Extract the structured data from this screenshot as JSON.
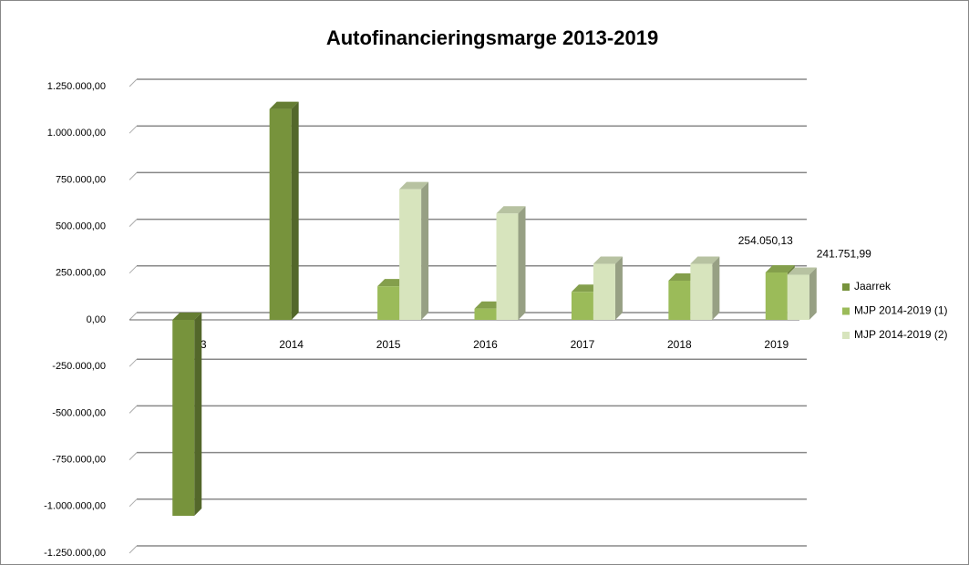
{
  "chart_data": {
    "type": "bar3d",
    "title": "Autofinancieringsmarge 2013-2019",
    "categories": [
      "2013",
      "2014",
      "2015",
      "2016",
      "2017",
      "2018",
      "2019"
    ],
    "series": [
      {
        "name": "Jaarrek",
        "color": "#77933c",
        "values": [
          -1050000,
          1130000,
          null,
          null,
          null,
          null,
          null
        ]
      },
      {
        "name": "MJP 2014-2019 (1)",
        "color": "#9bbb59",
        "values": [
          null,
          null,
          180000,
          60000,
          150000,
          210000,
          254050.13
        ],
        "value_labels": [
          null,
          null,
          null,
          null,
          null,
          null,
          "254.050,13"
        ]
      },
      {
        "name": "MJP 2014-2019 (2)",
        "color": "#d7e4bd",
        "values": [
          null,
          null,
          700000,
          570000,
          300000,
          300000,
          241751.99
        ],
        "value_labels": [
          null,
          null,
          null,
          null,
          null,
          null,
          "241.751,99"
        ]
      }
    ],
    "ylim": [
      -1250000,
      1250000
    ],
    "yticks": [
      {
        "value": -1250000,
        "label": "-1.250.000,00"
      },
      {
        "value": -1000000,
        "label": "-1.000.000,00"
      },
      {
        "value": -750000,
        "label": "-750.000,00"
      },
      {
        "value": -500000,
        "label": "-500.000,00"
      },
      {
        "value": -250000,
        "label": "-250.000,00"
      },
      {
        "value": 0,
        "label": "0,00"
      },
      {
        "value": 250000,
        "label": "250.000,00"
      },
      {
        "value": 500000,
        "label": "500.000,00"
      },
      {
        "value": 750000,
        "label": "750.000,00"
      },
      {
        "value": 1000000,
        "label": "1.000.000,00"
      },
      {
        "value": 1250000,
        "label": "1.250.000,00"
      }
    ],
    "grid": true,
    "legend": "right"
  }
}
